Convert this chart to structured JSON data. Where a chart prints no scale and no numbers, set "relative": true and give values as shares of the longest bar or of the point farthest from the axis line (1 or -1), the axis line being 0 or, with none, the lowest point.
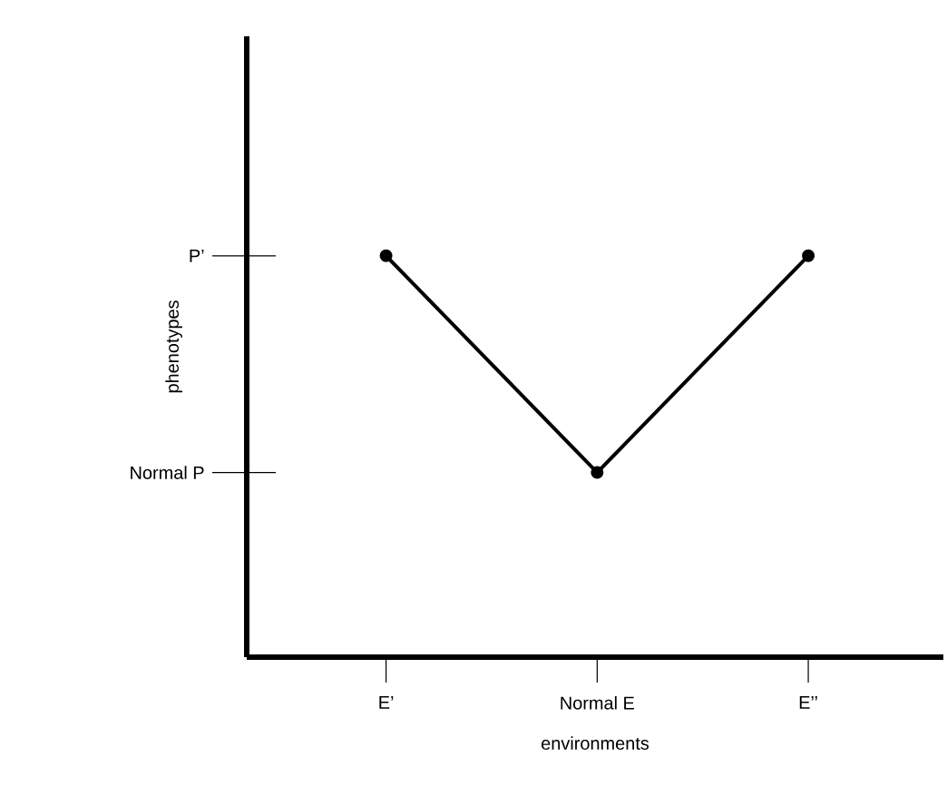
{
  "chart_data": {
    "type": "line",
    "xlabel": "environments",
    "ylabel": "phenotypes",
    "categories": [
      "E’",
      "Normal E",
      "E’’"
    ],
    "values": [
      1,
      0.46,
      1
    ],
    "color": "#000000",
    "marker": "circle",
    "relative": true,
    "ref_lines": [
      {
        "axis": "y",
        "value": 0.46,
        "label": "Normal P"
      },
      {
        "axis": "y",
        "value": 1,
        "label": "P’"
      }
    ]
  }
}
